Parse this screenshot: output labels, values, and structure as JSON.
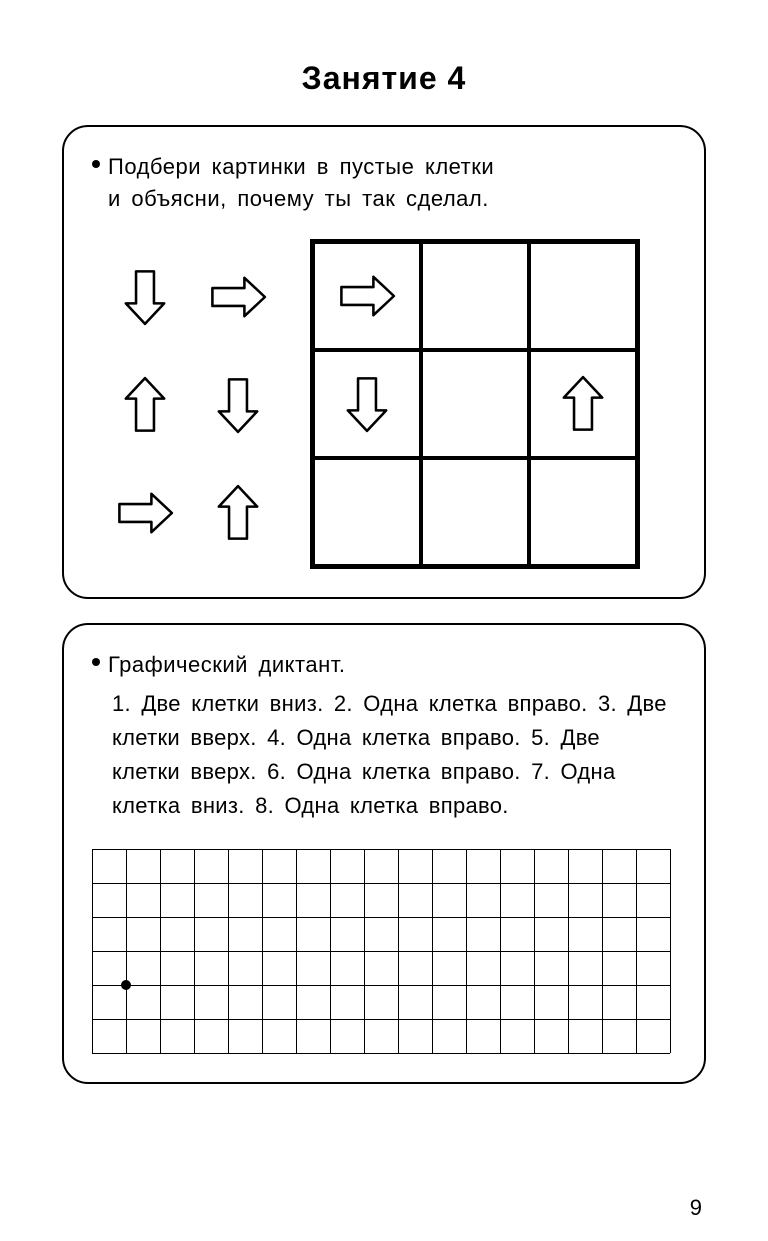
{
  "title": "Занятие  4",
  "page_number": "9",
  "colors": {
    "stroke": "#000000",
    "fill": "#ffffff",
    "grid": "#000000"
  },
  "exercise1": {
    "instruction_line1": "Подбери  картинки  в  пустые  клетки",
    "instruction_line2": "и  объясни,  почему ты  так  сделал.",
    "arrow_style": {
      "stroke_width": 4,
      "size": 64
    },
    "left_arrows": [
      [
        "down",
        "right"
      ],
      [
        "up",
        "down"
      ],
      [
        "right",
        "up"
      ]
    ],
    "puzzle": {
      "cell_size": 108,
      "border_width": 3,
      "cells": [
        [
          "right",
          null,
          null
        ],
        [
          "down",
          null,
          "up"
        ],
        [
          null,
          null,
          null
        ]
      ]
    }
  },
  "exercise2": {
    "heading": "Графический  диктант.",
    "steps_text": "1.  Две  клетки  вниз.  2.  Одна  клетка вправо.  3.  Две  клетки  вверх.  4.  Одна клетка  вправо.  5.  Две  клетки  вверх. 6.  Одна  клетка  вправо.  7.  Одна  клетка вниз.  8.  Одна  клетка  вправо.",
    "grid": {
      "cols": 17,
      "rows": 6,
      "cell_size": 34,
      "line_color": "#000000",
      "line_width": 1,
      "start_dot": {
        "col": 1,
        "row": 4,
        "radius": 5
      }
    }
  }
}
